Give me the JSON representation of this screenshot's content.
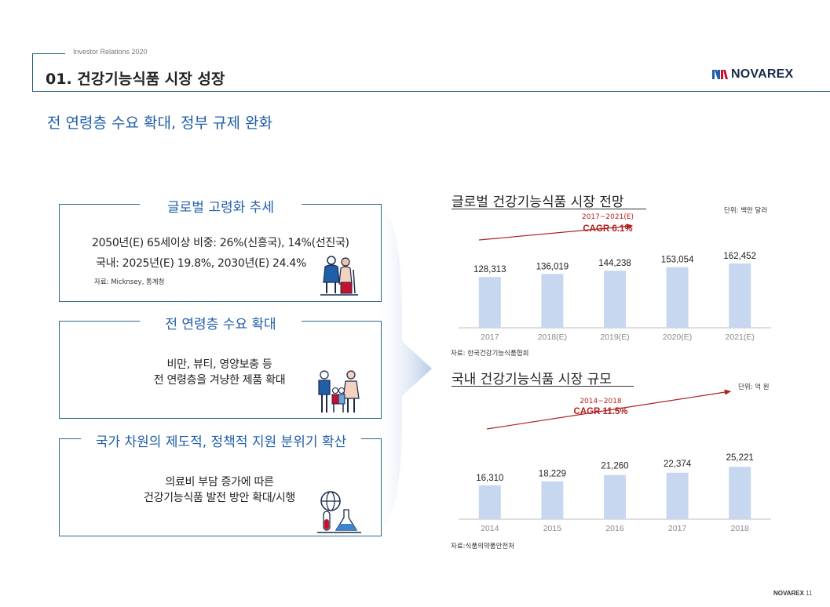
{
  "header": {
    "ir_label": "Investor Relations 2020",
    "page_title": "01. 건강기능식품 시장 성장",
    "logo_text": "NOVAREX",
    "logo_icon": "novarex-logo-icon"
  },
  "subtitle": "전 연령층 수요 확대, 정부 규제 완화",
  "boxes": [
    {
      "title": "글로벌 고령화 추세",
      "lines": [
        "2050년(E) 65세이상 비중: 26%(신흥국), 14%(선진국)",
        "국내: 2025년(E) 19.8%, 2030년(E) 24.4%"
      ],
      "source": "자료: Micknsey, 통계청",
      "icon": "elderly-couple-icon"
    },
    {
      "title": "전 연령층 수요 확대",
      "lines": [
        "비만, 뷰티, 영양보충 등",
        "전 연령층을 겨냥한 제품 확대"
      ],
      "icon": "family-icon"
    },
    {
      "title": "국가 차원의 제도적, 정책적 지원 분위기 확산",
      "lines": [
        "의료비 부담 증가에 따른",
        "건강기능식품 발전 방안 확대/시행"
      ],
      "icon": "globe-lab-icon"
    }
  ],
  "colors": {
    "accent": "#1f5ea8",
    "bar": "#c6d7ef",
    "cagr": "#b11e1e",
    "frame": "#2b6a8a"
  },
  "chart_data": [
    {
      "type": "bar",
      "title": "글로벌 건강기능식품 시장 전망",
      "unit": "단위: 백만 달러",
      "categories": [
        "2017",
        "2018(E)",
        "2019(E)",
        "2020(E)",
        "2021(E)"
      ],
      "values": [
        128313,
        136019,
        144238,
        153054,
        162452
      ],
      "value_labels": [
        "128,313",
        "136,019",
        "144,238",
        "153,054",
        "162,452"
      ],
      "cagr_period": "2017~2021(E)",
      "cagr_label": "CAGR 6.1%",
      "source": "자료: 한국건강기능식품협회",
      "ylim": [
        0,
        200000
      ]
    },
    {
      "type": "bar",
      "title": "국내 건강기능식품 시장 규모",
      "unit": "단위: 억 원",
      "categories": [
        "2014",
        "2015",
        "2016",
        "2017",
        "2018"
      ],
      "values": [
        16310,
        18229,
        21260,
        22374,
        25221
      ],
      "value_labels": [
        "16,310",
        "18,229",
        "21,260",
        "22,374",
        "25,221"
      ],
      "cagr_period": "2014~2018",
      "cagr_label": "CAGR 11.5%",
      "source": "자료:식품의약품안전처",
      "ylim": [
        0,
        34000
      ]
    }
  ],
  "footer": {
    "brand": "NOVAREX",
    "page": "11"
  }
}
